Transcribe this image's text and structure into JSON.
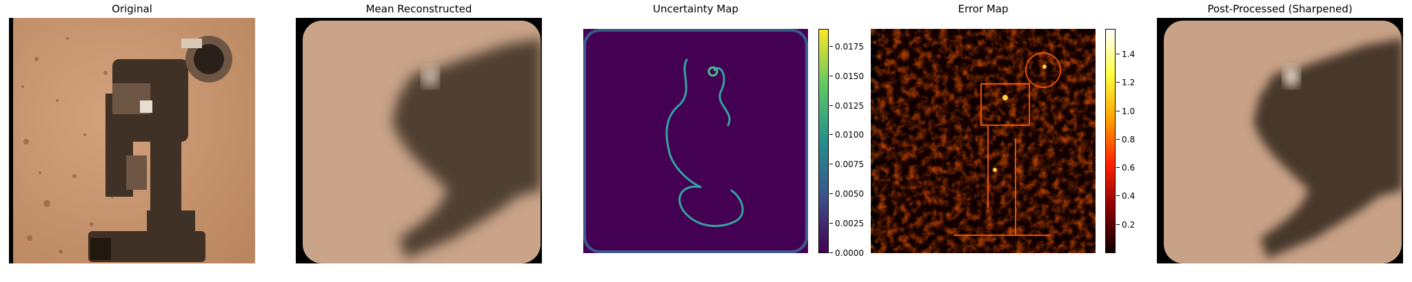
{
  "panels": [
    {
      "title": "Original"
    },
    {
      "title": "Mean Reconstructed"
    },
    {
      "title": "Uncertainty Map"
    },
    {
      "title": "Error Map"
    },
    {
      "title": "Post-Processed (Sharpened)"
    }
  ],
  "uncertainty_colorbar": {
    "colormap": "viridis",
    "range": [
      0.0,
      0.019
    ],
    "ticks": [
      "0.0175",
      "0.0150",
      "0.0125",
      "0.0100",
      "0.0075",
      "0.0050",
      "0.0025",
      "0.0000"
    ]
  },
  "error_colorbar": {
    "colormap": "hot",
    "range": [
      0.0,
      1.58
    ],
    "ticks": [
      "1.4",
      "1.2",
      "1.0",
      "0.8",
      "0.6",
      "0.4",
      "0.2"
    ]
  },
  "colors": {
    "sand": "#c89a76",
    "recon_sand": "#c9a489",
    "rover_dark": "#4a3b2d",
    "viridis_low": "#440154",
    "hot_low": "#1a0000"
  }
}
